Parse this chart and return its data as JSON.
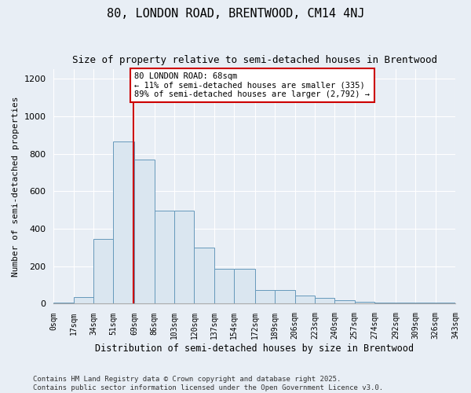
{
  "title1": "80, LONDON ROAD, BRENTWOOD, CM14 4NJ",
  "title2": "Size of property relative to semi-detached houses in Brentwood",
  "xlabel": "Distribution of semi-detached houses by size in Brentwood",
  "ylabel": "Number of semi-detached properties",
  "bar_values": [
    8,
    35,
    345,
    865,
    770,
    495,
    495,
    300,
    185,
    185,
    75,
    75,
    45,
    30,
    18,
    10,
    5,
    5,
    5,
    5
  ],
  "bin_edges": [
    0,
    17,
    34,
    51,
    69,
    86,
    103,
    120,
    137,
    154,
    172,
    189,
    206,
    223,
    240,
    257,
    274,
    292,
    309,
    326,
    343
  ],
  "bin_labels": [
    "0sqm",
    "17sqm",
    "34sqm",
    "51sqm",
    "69sqm",
    "86sqm",
    "103sqm",
    "120sqm",
    "137sqm",
    "154sqm",
    "172sqm",
    "189sqm",
    "206sqm",
    "223sqm",
    "240sqm",
    "257sqm",
    "274sqm",
    "292sqm",
    "309sqm",
    "326sqm",
    "343sqm"
  ],
  "property_size": 68,
  "annotation_text": "80 LONDON ROAD: 68sqm\n← 11% of semi-detached houses are smaller (335)\n89% of semi-detached houses are larger (2,792) →",
  "bar_color": "#dae6f0",
  "bar_edge_color": "#6699bb",
  "vline_color": "#cc0000",
  "annotation_box_color": "#cc0000",
  "background_color": "#e8eef5",
  "grid_color": "#ffffff",
  "ylim": [
    0,
    1250
  ],
  "yticks": [
    0,
    200,
    400,
    600,
    800,
    1000,
    1200
  ],
  "footnote": "Contains HM Land Registry data © Crown copyright and database right 2025.\nContains public sector information licensed under the Open Government Licence v3.0."
}
